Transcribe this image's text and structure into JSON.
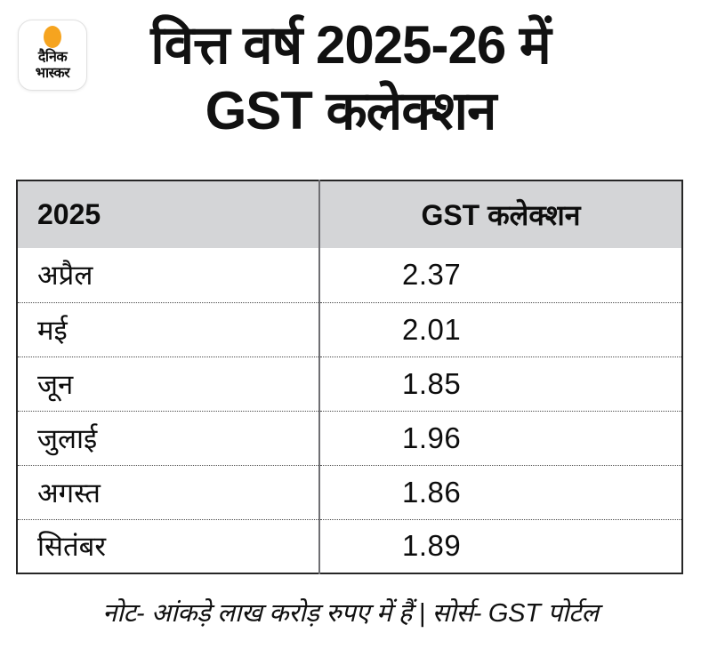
{
  "logo": {
    "line1": "दैनिक",
    "line2": "भास्कर"
  },
  "title": {
    "line1": "वित्त वर्ष 2025-26 में",
    "line2": "GST कलेक्शन"
  },
  "table": {
    "header": {
      "col1": "2025",
      "col2": "GST कलेक्शन"
    },
    "rows": [
      {
        "month": "अप्रैल",
        "value": "2.37"
      },
      {
        "month": "मई",
        "value": "2.01"
      },
      {
        "month": "जून",
        "value": "1.85"
      },
      {
        "month": "जुलाई",
        "value": "1.96"
      },
      {
        "month": "अगस्त",
        "value": "1.86"
      },
      {
        "month": "सितंबर",
        "value": "1.89"
      }
    ]
  },
  "footer": {
    "note": "नोट- आंकड़े लाख करोड़ रुपए में हैं | सोर्स- GST पोर्टल"
  },
  "colors": {
    "table_header_bg": "#d4d5d7",
    "logo_sun": "#f6a41f",
    "table_border": "#262626",
    "column_divider": "#6f6f73"
  },
  "chart_data": {
    "type": "table",
    "title": "वित्त वर्ष 2025-26 में GST कलेक्शन",
    "columns": [
      "2025",
      "GST कलेक्शन"
    ],
    "categories": [
      "अप्रैल",
      "मई",
      "जून",
      "जुलाई",
      "अगस्त",
      "सितंबर"
    ],
    "values": [
      2.37,
      2.01,
      1.85,
      1.96,
      1.86,
      1.89
    ],
    "unit_note": "नोट- आंकड़े लाख करोड़ रुपए में हैं",
    "source": "सोर्स- GST पोर्टल",
    "legend_position": "none",
    "grid": "dotted-row-separators"
  }
}
